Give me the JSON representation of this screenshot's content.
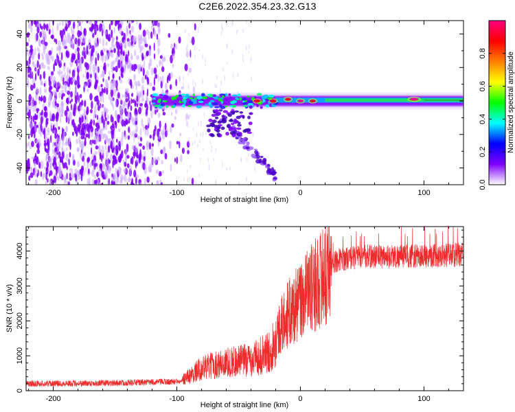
{
  "title": "C2E6.2022.354.23.32.G13",
  "chart_data": [
    {
      "type": "heatmap",
      "xlabel": "Height of straight line (km)",
      "ylabel": "Frequency (Hz)",
      "xlim": [
        -222,
        132
      ],
      "ylim": [
        -50,
        48
      ],
      "xticks": [
        -200,
        -100,
        0,
        100
      ],
      "yticks": [
        -40,
        -20,
        0,
        20,
        40
      ],
      "grid": false,
      "colorbar": {
        "label": "Normalized spectral amplitude",
        "range": [
          0,
          1
        ],
        "ticks": [
          0.0,
          0.2,
          0.4,
          0.6,
          0.8
        ],
        "colors": [
          "#ffffff",
          "#7f00ff",
          "#0000ff",
          "#00ffff",
          "#00ff00",
          "#ffff00",
          "#ff8000",
          "#ff0000",
          "#ff0080"
        ]
      },
      "regions": [
        {
          "name": "broadband noise",
          "x": [
            -222,
            -90
          ],
          "y": [
            -50,
            48
          ],
          "amplitude": 0.1
        },
        {
          "name": "carrier line",
          "x": [
            -120,
            132
          ],
          "y": [
            -3,
            3
          ],
          "amplitude": 0.5
        },
        {
          "name": "carrier peak",
          "x": [
            92
          ],
          "y": [
            1
          ],
          "amplitude": 1.0
        },
        {
          "name": "lower branch",
          "x": [
            -70,
            -20
          ],
          "y": [
            -5,
            -45
          ],
          "amplitude": 0.2
        }
      ]
    },
    {
      "type": "line",
      "xlabel": "Height of straight line (km)",
      "ylabel": "SNR (10 * v/v)",
      "xlim": [
        -222,
        132
      ],
      "ylim": [
        0,
        4700
      ],
      "xticks": [
        -200,
        -100,
        0,
        100
      ],
      "yticks": [
        0,
        1000,
        2000,
        3000,
        4000
      ],
      "grid": false,
      "color": "#ee2c2c",
      "profile": {
        "x": [
          -222,
          -150,
          -100,
          -90,
          -80,
          -60,
          -40,
          -25,
          -18,
          -10,
          0,
          10,
          20,
          30,
          50,
          80,
          110,
          132
        ],
        "y": [
          200,
          220,
          260,
          420,
          650,
          800,
          900,
          1100,
          1700,
          2200,
          2550,
          2900,
          3400,
          3750,
          3850,
          3850,
          3870,
          3900
        ]
      }
    }
  ]
}
